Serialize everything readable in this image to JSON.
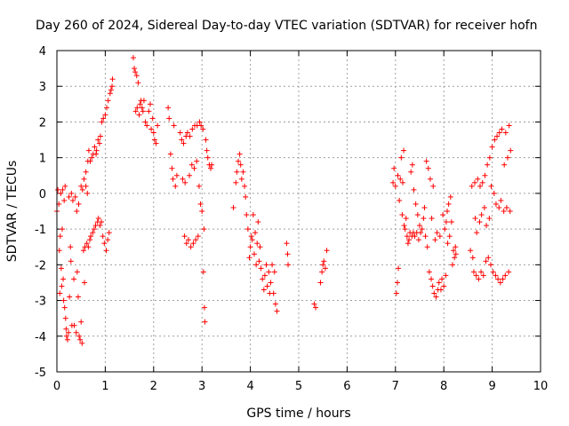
{
  "chart_data": {
    "type": "scatter",
    "title": "Day 260 of 2024, Sidereal Day-to-day VTEC variation (SDTVAR) for receiver hofn",
    "xlabel": "GPS time / hours",
    "ylabel": "SDTVAR / TECUs",
    "xlim": [
      0,
      10
    ],
    "ylim": [
      -5,
      4
    ],
    "x_ticks": [
      "0",
      "1",
      "2",
      "3",
      "4",
      "5",
      "6",
      "7",
      "8",
      "9",
      "10"
    ],
    "y_ticks": [
      "4",
      "3",
      "2",
      "1",
      "0",
      "-1",
      "-2",
      "-3",
      "-4",
      "-5"
    ],
    "grid": true,
    "marker": "+",
    "marker_color": "#ff0000",
    "series": [
      {
        "name": "hofn",
        "points": [
          [
            0.0,
            -0.5
          ],
          [
            0.02,
            0.1
          ],
          [
            0.04,
            -0.3
          ],
          [
            0.05,
            -1.6
          ],
          [
            0.06,
            -2.8
          ],
          [
            0.07,
            -1.2
          ],
          [
            0.08,
            0.0
          ],
          [
            0.09,
            -2.1
          ],
          [
            0.1,
            -2.6
          ],
          [
            0.11,
            -1.0
          ],
          [
            0.12,
            0.1
          ],
          [
            0.13,
            -2.4
          ],
          [
            0.14,
            -3.0
          ],
          [
            0.15,
            -0.2
          ],
          [
            0.16,
            -3.2
          ],
          [
            0.17,
            0.2
          ],
          [
            0.18,
            -3.5
          ],
          [
            0.19,
            -3.8
          ],
          [
            0.2,
            -4.0
          ],
          [
            0.22,
            -4.1
          ],
          [
            0.24,
            -3.9
          ],
          [
            0.25,
            -0.1
          ],
          [
            0.26,
            -2.9
          ],
          [
            0.28,
            -1.5
          ],
          [
            0.29,
            -1.9
          ],
          [
            0.3,
            0.0
          ],
          [
            0.31,
            -3.7
          ],
          [
            0.33,
            -0.2
          ],
          [
            0.35,
            -2.4
          ],
          [
            0.36,
            -3.7
          ],
          [
            0.38,
            -0.1
          ],
          [
            0.4,
            -3.9
          ],
          [
            0.41,
            -0.5
          ],
          [
            0.42,
            -2.2
          ],
          [
            0.44,
            -2.9
          ],
          [
            0.45,
            -0.3
          ],
          [
            0.46,
            -4.0
          ],
          [
            0.48,
            -4.1
          ],
          [
            0.5,
            -3.6
          ],
          [
            0.52,
            -4.2
          ],
          [
            0.5,
            0.2
          ],
          [
            0.53,
            0.1
          ],
          [
            0.55,
            -1.6
          ],
          [
            0.56,
            0.4
          ],
          [
            0.57,
            -2.5
          ],
          [
            0.58,
            -1.5
          ],
          [
            0.6,
            0.2
          ],
          [
            0.6,
            0.6
          ],
          [
            0.62,
            -1.4
          ],
          [
            0.63,
            0.0
          ],
          [
            0.64,
            0.9
          ],
          [
            0.65,
            -1.5
          ],
          [
            0.66,
            1.2
          ],
          [
            0.68,
            -1.3
          ],
          [
            0.69,
            0.9
          ],
          [
            0.7,
            -1.2
          ],
          [
            0.72,
            1.0
          ],
          [
            0.74,
            -1.1
          ],
          [
            0.75,
            1.1
          ],
          [
            0.77,
            -1.0
          ],
          [
            0.78,
            1.3
          ],
          [
            0.8,
            -0.9
          ],
          [
            0.81,
            1.1
          ],
          [
            0.82,
            1.2
          ],
          [
            0.84,
            -0.8
          ],
          [
            0.85,
            1.5
          ],
          [
            0.86,
            -0.7
          ],
          [
            0.88,
            1.4
          ],
          [
            0.89,
            -0.9
          ],
          [
            0.9,
            1.6
          ],
          [
            0.92,
            -0.8
          ],
          [
            0.93,
            2.0
          ],
          [
            0.95,
            -1.2
          ],
          [
            0.96,
            2.1
          ],
          [
            0.98,
            -1.4
          ],
          [
            1.0,
            2.2
          ],
          [
            1.02,
            -1.6
          ],
          [
            1.03,
            2.4
          ],
          [
            1.05,
            -1.3
          ],
          [
            1.06,
            2.6
          ],
          [
            1.08,
            -1.1
          ],
          [
            1.1,
            2.8
          ],
          [
            1.12,
            2.9
          ],
          [
            1.14,
            3.0
          ],
          [
            1.15,
            3.2
          ],
          [
            1.58,
            3.8
          ],
          [
            1.6,
            3.5
          ],
          [
            1.62,
            3.4
          ],
          [
            1.63,
            2.3
          ],
          [
            1.65,
            3.3
          ],
          [
            1.66,
            2.4
          ],
          [
            1.68,
            3.1
          ],
          [
            1.7,
            2.2
          ],
          [
            1.72,
            2.5
          ],
          [
            1.74,
            2.6
          ],
          [
            1.76,
            2.4
          ],
          [
            1.78,
            2.3
          ],
          [
            1.8,
            2.6
          ],
          [
            1.83,
            2.0
          ],
          [
            1.86,
            1.9
          ],
          [
            1.9,
            2.3
          ],
          [
            1.93,
            2.5
          ],
          [
            1.95,
            1.8
          ],
          [
            1.98,
            2.1
          ],
          [
            2.0,
            1.7
          ],
          [
            2.02,
            1.5
          ],
          [
            2.05,
            1.4
          ],
          [
            2.08,
            1.9
          ],
          [
            2.3,
            2.4
          ],
          [
            2.32,
            2.1
          ],
          [
            2.35,
            1.1
          ],
          [
            2.38,
            0.7
          ],
          [
            2.4,
            0.4
          ],
          [
            2.42,
            1.9
          ],
          [
            2.45,
            0.2
          ],
          [
            2.48,
            0.5
          ],
          [
            2.55,
            1.7
          ],
          [
            2.58,
            1.5
          ],
          [
            2.6,
            0.4
          ],
          [
            2.62,
            1.4
          ],
          [
            2.64,
            -1.2
          ],
          [
            2.65,
            0.3
          ],
          [
            2.67,
            1.6
          ],
          [
            2.68,
            -1.4
          ],
          [
            2.7,
            1.7
          ],
          [
            2.72,
            -1.3
          ],
          [
            2.74,
            0.5
          ],
          [
            2.75,
            1.6
          ],
          [
            2.77,
            -1.5
          ],
          [
            2.79,
            0.8
          ],
          [
            2.8,
            1.8
          ],
          [
            2.82,
            -1.4
          ],
          [
            2.84,
            0.7
          ],
          [
            2.85,
            1.9
          ],
          [
            2.87,
            -1.3
          ],
          [
            2.89,
            0.9
          ],
          [
            2.9,
            1.9
          ],
          [
            2.92,
            -1.2
          ],
          [
            2.94,
            0.2
          ],
          [
            2.95,
            2.0
          ],
          [
            2.97,
            -0.3
          ],
          [
            2.98,
            1.9
          ],
          [
            3.0,
            -0.5
          ],
          [
            3.02,
            1.8
          ],
          [
            3.03,
            -2.2
          ],
          [
            3.04,
            -1.0
          ],
          [
            3.05,
            -3.2
          ],
          [
            3.06,
            -3.6
          ],
          [
            3.08,
            1.5
          ],
          [
            3.1,
            1.2
          ],
          [
            3.12,
            1.0
          ],
          [
            3.15,
            0.8
          ],
          [
            3.18,
            0.7
          ],
          [
            3.2,
            0.8
          ],
          [
            3.65,
            -0.4
          ],
          [
            3.7,
            0.3
          ],
          [
            3.72,
            0.6
          ],
          [
            3.75,
            0.9
          ],
          [
            3.78,
            1.1
          ],
          [
            3.8,
            0.8
          ],
          [
            3.82,
            0.4
          ],
          [
            3.85,
            0.6
          ],
          [
            3.88,
            0.2
          ],
          [
            3.9,
            -0.1
          ],
          [
            3.92,
            -0.6
          ],
          [
            3.95,
            -1.0
          ],
          [
            3.98,
            -1.8
          ],
          [
            4.0,
            -1.5
          ],
          [
            4.02,
            -1.2
          ],
          [
            4.04,
            -1.3
          ],
          [
            4.06,
            -0.6
          ],
          [
            4.08,
            -1.7
          ],
          [
            4.1,
            -1.1
          ],
          [
            4.12,
            -2.0
          ],
          [
            4.14,
            -1.4
          ],
          [
            4.16,
            -0.8
          ],
          [
            4.18,
            -1.9
          ],
          [
            4.2,
            -1.5
          ],
          [
            4.22,
            -2.1
          ],
          [
            4.25,
            -2.4
          ],
          [
            4.28,
            -2.7
          ],
          [
            4.3,
            -2.3
          ],
          [
            4.33,
            -2.0
          ],
          [
            4.35,
            -2.6
          ],
          [
            4.38,
            -2.2
          ],
          [
            4.4,
            -2.8
          ],
          [
            4.42,
            -2.5
          ],
          [
            4.45,
            -2.0
          ],
          [
            4.48,
            -2.8
          ],
          [
            4.5,
            -2.2
          ],
          [
            4.52,
            -3.1
          ],
          [
            4.55,
            -3.3
          ],
          [
            4.75,
            -1.4
          ],
          [
            4.77,
            -1.7
          ],
          [
            4.78,
            -2.0
          ],
          [
            5.32,
            -3.1
          ],
          [
            5.35,
            -3.2
          ],
          [
            5.45,
            -2.5
          ],
          [
            5.48,
            -2.2
          ],
          [
            5.5,
            -2.0
          ],
          [
            5.52,
            -1.9
          ],
          [
            5.55,
            -2.1
          ],
          [
            5.58,
            -1.6
          ],
          [
            6.95,
            0.3
          ],
          [
            6.97,
            0.7
          ],
          [
            7.0,
            0.2
          ],
          [
            7.02,
            -2.8
          ],
          [
            7.04,
            -2.5
          ],
          [
            7.05,
            0.5
          ],
          [
            7.06,
            -2.1
          ],
          [
            7.08,
            -0.2
          ],
          [
            7.1,
            0.4
          ],
          [
            7.12,
            1.0
          ],
          [
            7.14,
            -0.6
          ],
          [
            7.15,
            0.3
          ],
          [
            7.17,
            1.2
          ],
          [
            7.18,
            -0.9
          ],
          [
            7.2,
            -1.0
          ],
          [
            7.22,
            -0.7
          ],
          [
            7.24,
            -1.2
          ],
          [
            7.26,
            -1.4
          ],
          [
            7.28,
            -1.3
          ],
          [
            7.3,
            -1.1
          ],
          [
            7.32,
            0.6
          ],
          [
            7.34,
            -1.2
          ],
          [
            7.35,
            0.8
          ],
          [
            7.37,
            -1.1
          ],
          [
            7.38,
            0.1
          ],
          [
            7.4,
            -1.2
          ],
          [
            7.42,
            -0.3
          ],
          [
            7.44,
            -1.1
          ],
          [
            7.46,
            -0.6
          ],
          [
            7.48,
            -1.3
          ],
          [
            7.5,
            -0.9
          ],
          [
            7.52,
            -1.1
          ],
          [
            7.55,
            -1.0
          ],
          [
            7.58,
            -0.7
          ],
          [
            7.6,
            -0.4
          ],
          [
            7.62,
            -1.2
          ],
          [
            7.64,
            0.9
          ],
          [
            7.66,
            -1.5
          ],
          [
            7.68,
            0.7
          ],
          [
            7.7,
            -2.2
          ],
          [
            7.72,
            0.4
          ],
          [
            7.74,
            -2.4
          ],
          [
            7.75,
            -0.7
          ],
          [
            7.77,
            -2.6
          ],
          [
            7.78,
            0.2
          ],
          [
            7.8,
            -2.8
          ],
          [
            7.82,
            -1.3
          ],
          [
            7.84,
            -2.9
          ],
          [
            7.86,
            -1.1
          ],
          [
            7.88,
            -2.7
          ],
          [
            7.9,
            -2.5
          ],
          [
            7.92,
            -1.2
          ],
          [
            7.94,
            -2.7
          ],
          [
            7.96,
            -2.4
          ],
          [
            7.98,
            -0.6
          ],
          [
            8.0,
            -2.6
          ],
          [
            8.02,
            -1.0
          ],
          [
            8.04,
            -2.3
          ],
          [
            8.05,
            -0.8
          ],
          [
            8.07,
            -0.5
          ],
          [
            8.08,
            -1.4
          ],
          [
            8.1,
            -0.3
          ],
          [
            8.12,
            -1.2
          ],
          [
            8.14,
            -0.1
          ],
          [
            8.16,
            -0.8
          ],
          [
            8.18,
            -2.0
          ],
          [
            8.2,
            -1.6
          ],
          [
            8.22,
            -1.8
          ],
          [
            8.24,
            -1.5
          ],
          [
            8.25,
            -1.7
          ],
          [
            8.55,
            -1.6
          ],
          [
            8.58,
            0.2
          ],
          [
            8.6,
            -1.8
          ],
          [
            8.62,
            -2.2
          ],
          [
            8.64,
            0.3
          ],
          [
            8.65,
            -0.7
          ],
          [
            8.67,
            -2.3
          ],
          [
            8.68,
            -1.1
          ],
          [
            8.7,
            0.4
          ],
          [
            8.72,
            -2.4
          ],
          [
            8.74,
            -0.8
          ],
          [
            8.75,
            0.2
          ],
          [
            8.77,
            -2.2
          ],
          [
            8.78,
            -0.6
          ],
          [
            8.8,
            0.3
          ],
          [
            8.82,
            -2.3
          ],
          [
            8.84,
            -0.4
          ],
          [
            8.85,
            0.5
          ],
          [
            8.87,
            -1.9
          ],
          [
            8.88,
            -0.9
          ],
          [
            8.9,
            0.8
          ],
          [
            8.92,
            -1.8
          ],
          [
            8.94,
            -0.7
          ],
          [
            8.95,
            1.0
          ],
          [
            8.97,
            -2.0
          ],
          [
            8.98,
            0.2
          ],
          [
            9.0,
            1.3
          ],
          [
            9.02,
            -2.2
          ],
          [
            9.04,
            0.0
          ],
          [
            9.05,
            1.5
          ],
          [
            9.07,
            -2.3
          ],
          [
            9.08,
            -0.3
          ],
          [
            9.1,
            1.6
          ],
          [
            9.12,
            -2.4
          ],
          [
            9.14,
            -0.4
          ],
          [
            9.15,
            1.7
          ],
          [
            9.17,
            -2.5
          ],
          [
            9.18,
            -0.2
          ],
          [
            9.2,
            1.8
          ],
          [
            9.22,
            -2.4
          ],
          [
            9.24,
            -0.5
          ],
          [
            9.25,
            0.8
          ],
          [
            9.27,
            -2.3
          ],
          [
            9.28,
            1.7
          ],
          [
            9.3,
            -0.4
          ],
          [
            9.32,
            1.0
          ],
          [
            9.34,
            -2.2
          ],
          [
            9.35,
            1.9
          ],
          [
            9.37,
            -0.5
          ],
          [
            9.38,
            1.2
          ]
        ]
      }
    ]
  }
}
